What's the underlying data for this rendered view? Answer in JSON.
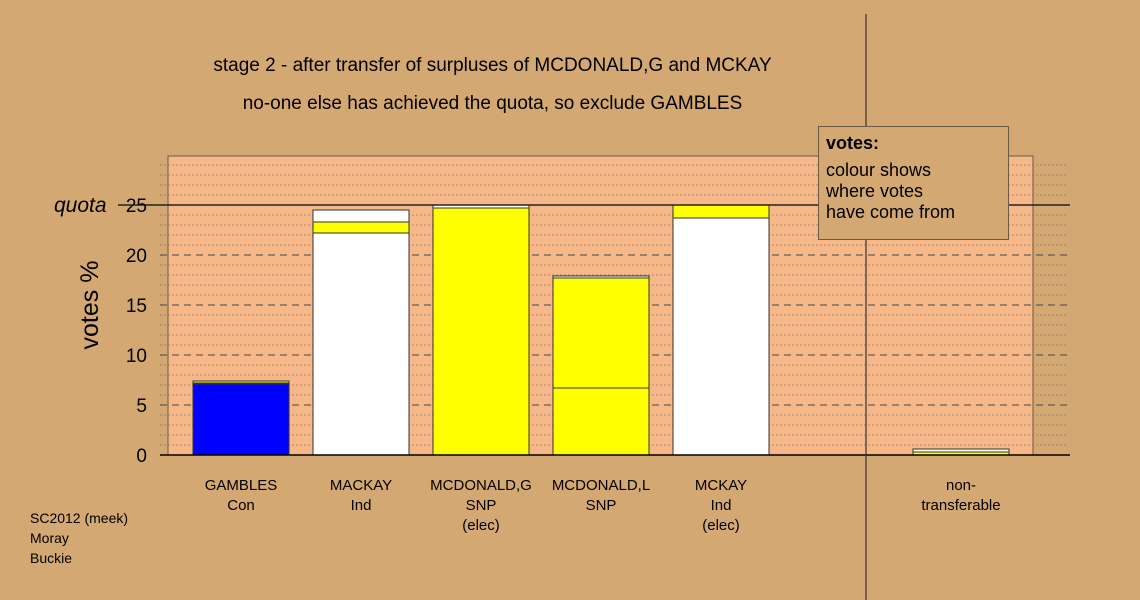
{
  "chart_data": {
    "type": "bar",
    "stacked": true,
    "title": "stage 2 - after transfer of surpluses of MCDONALD,G and MCKAY",
    "subtitle": "no-one else has achieved the quota, so exclude GAMBLES",
    "ylabel": "votes %",
    "ylim": [
      0,
      30
    ],
    "yticks": [
      0,
      5,
      10,
      15,
      20,
      25
    ],
    "quota": {
      "label": "quota",
      "value": 25
    },
    "categories": [
      {
        "name": "GAMBLES",
        "party": "Con",
        "note": ""
      },
      {
        "name": "MACKAY",
        "party": "Ind",
        "note": ""
      },
      {
        "name": "MCDONALD,G",
        "party": "SNP",
        "note": "(elec)"
      },
      {
        "name": "MCDONALD,L",
        "party": "SNP",
        "note": ""
      },
      {
        "name": "MCKAY",
        "party": "Ind",
        "note": "(elec)"
      },
      {
        "name": "",
        "party": "",
        "note": ""
      },
      {
        "name": "non-",
        "party": "transferable",
        "note": ""
      }
    ],
    "bars": [
      {
        "segments": [
          {
            "value": 7.1,
            "color": "#0000ff"
          },
          {
            "value": 0.1,
            "color": "#ffffff"
          },
          {
            "value": 0.2,
            "color": "#ffff00"
          }
        ]
      },
      {
        "segments": [
          {
            "value": 22.2,
            "color": "#ffffff"
          },
          {
            "value": 1.1,
            "color": "#ffff00"
          },
          {
            "value": 1.2,
            "color": "#ffffff"
          }
        ]
      },
      {
        "segments": [
          {
            "value": 24.7,
            "color": "#ffff00"
          },
          {
            "value": 0.3,
            "color": "#ffffff"
          }
        ]
      },
      {
        "segments": [
          {
            "value": 6.7,
            "color": "#ffff00"
          },
          {
            "value": 11.0,
            "color": "#ffff00"
          },
          {
            "value": 0.2,
            "color": "#ffffff"
          }
        ]
      },
      {
        "segments": [
          {
            "value": 23.7,
            "color": "#ffffff"
          },
          {
            "value": 1.3,
            "color": "#ffff00"
          }
        ]
      },
      {
        "segments": []
      },
      {
        "segments": [
          {
            "value": 0.3,
            "color": "#ffff00"
          },
          {
            "value": 0.3,
            "color": "#ffffff"
          }
        ]
      }
    ],
    "legend": {
      "title": "votes:",
      "lines": [
        "colour shows",
        "where votes",
        "have come from"
      ],
      "placement": "top-right"
    },
    "colors": {
      "background": "#d4a873",
      "plot": "#f6b889"
    }
  },
  "source": [
    "SC2012 (meek)",
    "Moray",
    "Buckie"
  ]
}
